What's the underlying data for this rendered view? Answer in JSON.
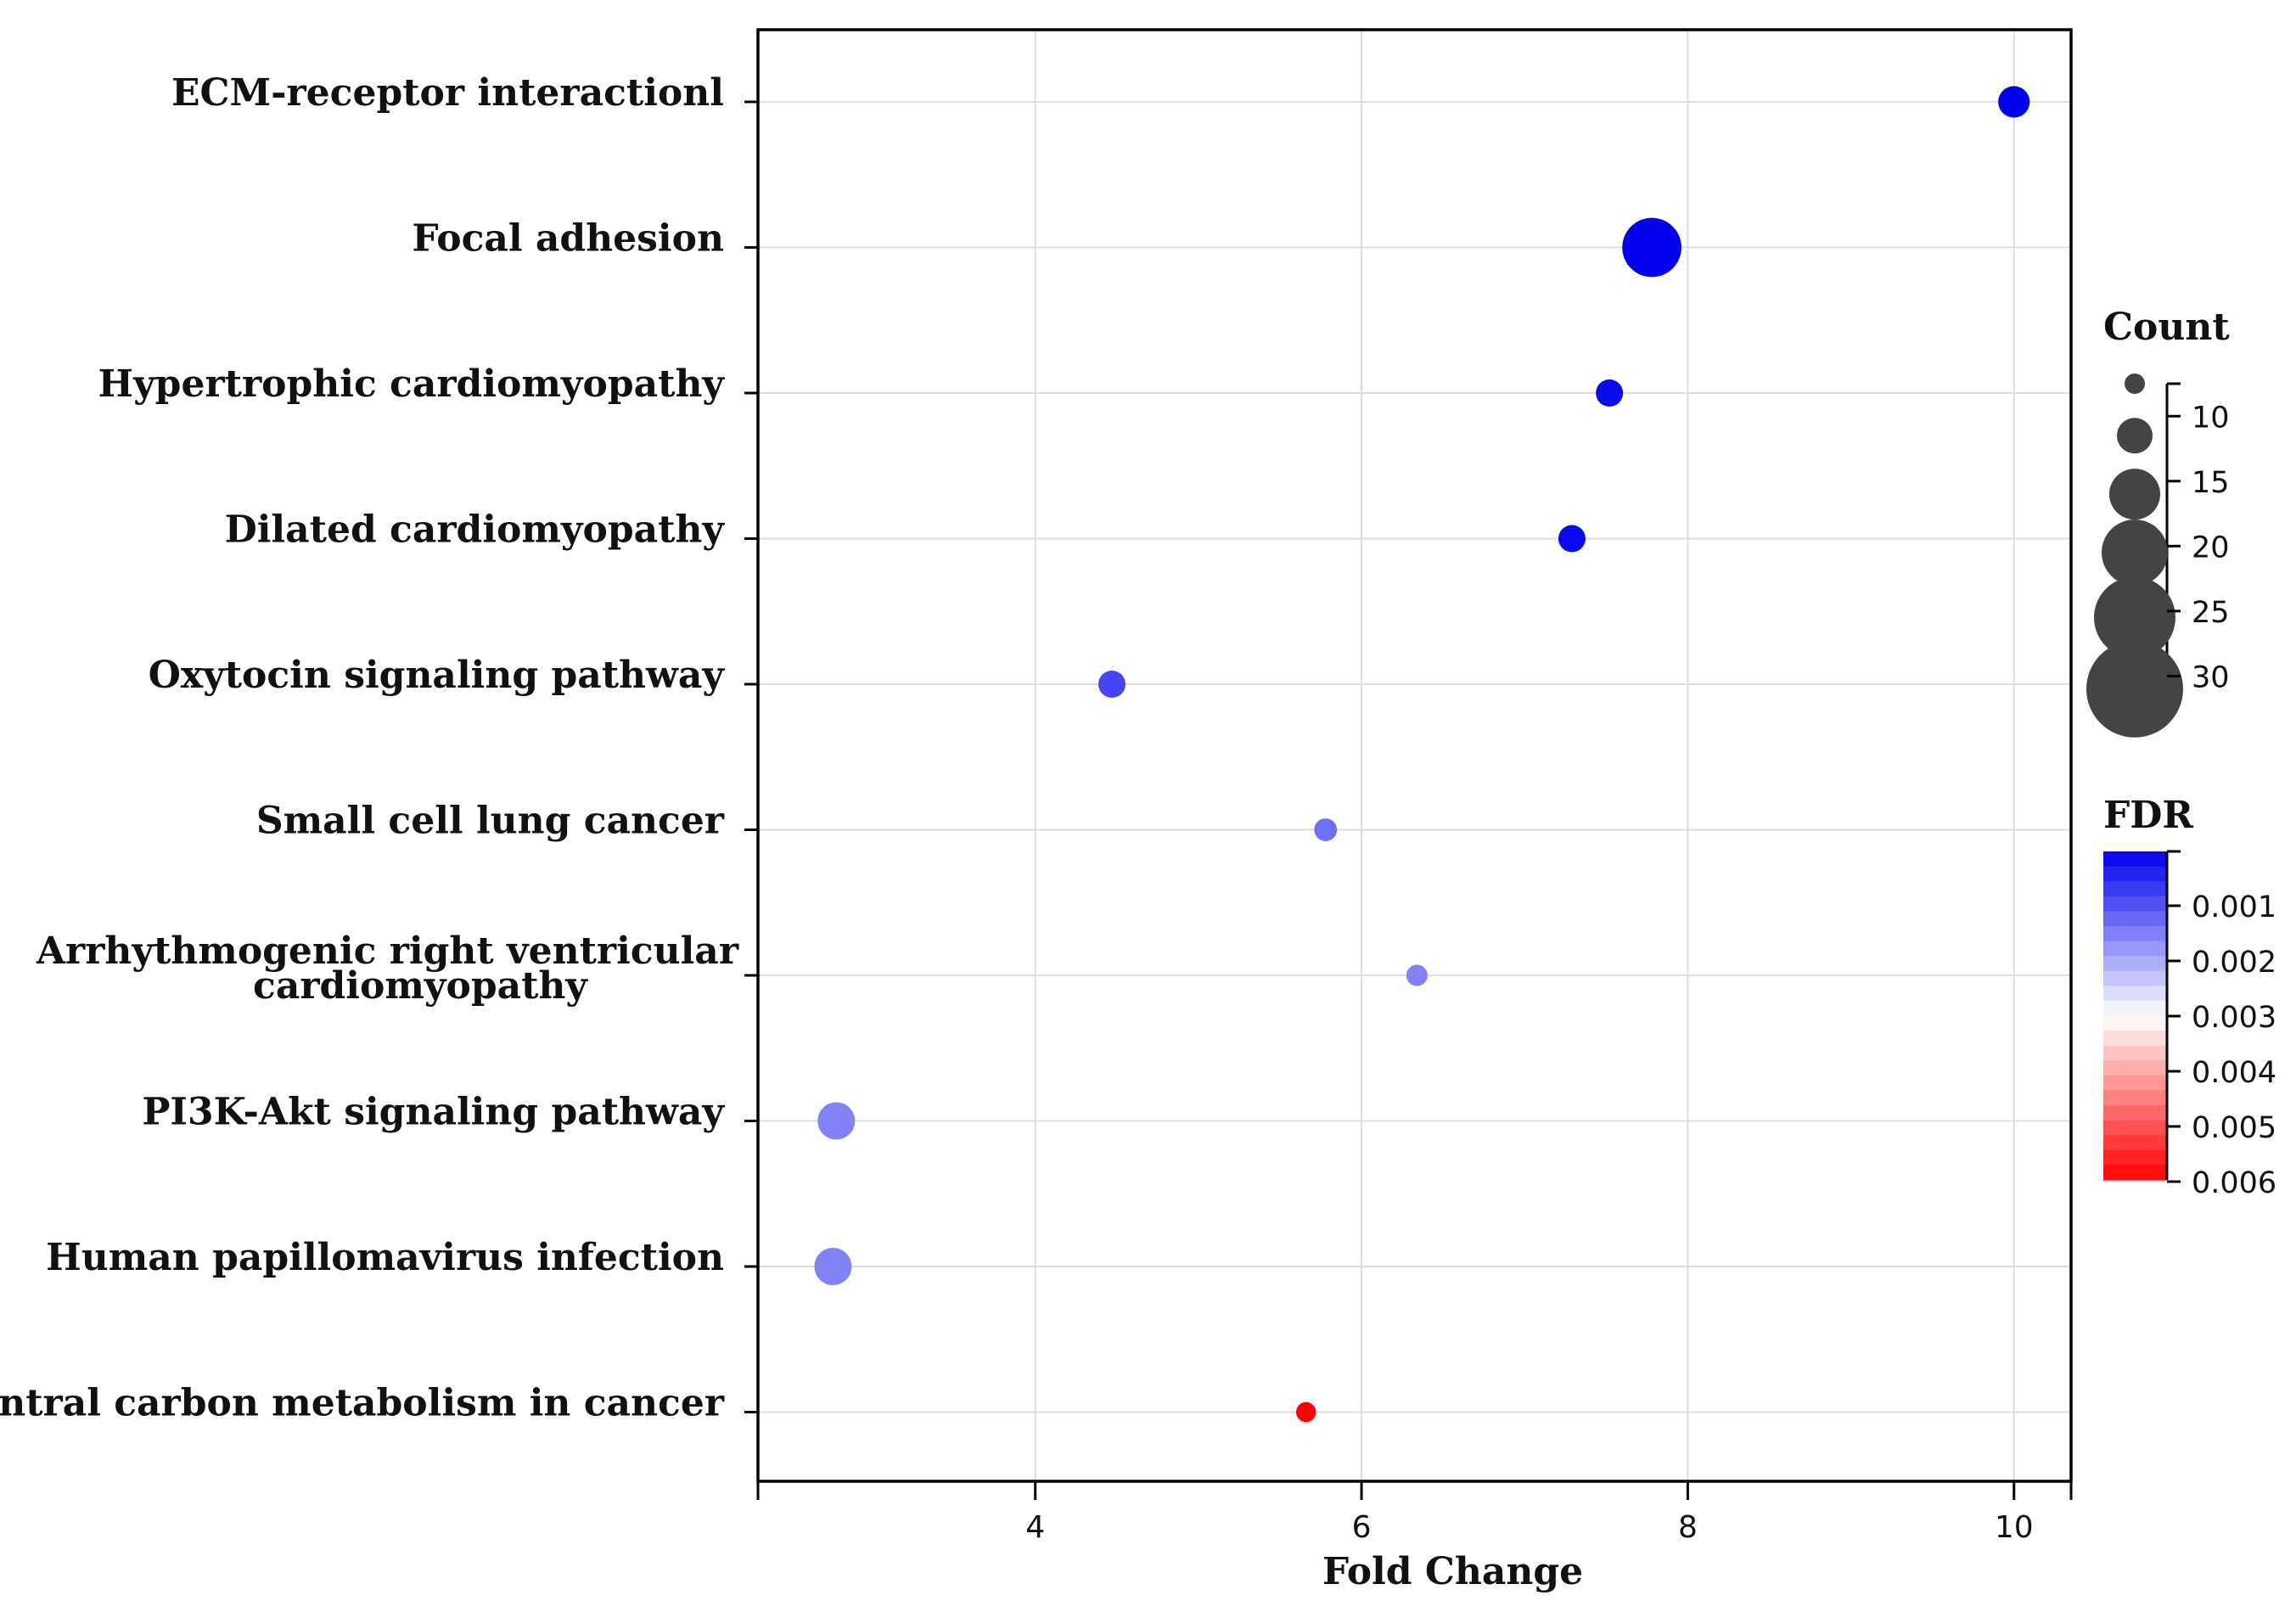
{
  "chart_data": {
    "type": "scatter",
    "title": "",
    "xlabel": "Fold Change",
    "ylabel": "",
    "xlim": [
      2.3,
      10.35
    ],
    "xticks": [
      4,
      6,
      8,
      10
    ],
    "grid": true,
    "categories": [
      "ECM-receptor interactionl",
      "Focal adhesion",
      "Hypertrophic cardiomyopathy",
      "Dilated cardiomyopathy",
      "Oxytocin signaling pathway",
      "Small cell lung cancer",
      "Arrhythmogenic right ventricular cardiomyopathy",
      "PI3K-Akt signaling pathway",
      "Human papillomavirus infection",
      "Central carbon metabolism in cancer"
    ],
    "category_lines": [
      [
        "ECM-receptor interactionl"
      ],
      [
        "Focal adhesion"
      ],
      [
        "Hypertrophic cardiomyopathy"
      ],
      [
        "Dilated cardiomyopathy"
      ],
      [
        "Oxytocin signaling pathway"
      ],
      [
        "Small cell lung cancer"
      ],
      [
        "Arrhythmogenic right ventricular",
        "cardiomyopathy"
      ],
      [
        "PI3K-Akt signaling pathway"
      ],
      [
        "Human papillomavirus infection"
      ],
      [
        "Central carbon metabolism in cancer"
      ]
    ],
    "points": [
      {
        "pathway": "ECM-receptor interactionl",
        "fold_change": 10.0,
        "count": 14,
        "fdr": 1e-05
      },
      {
        "pathway": "Focal adhesion",
        "fold_change": 7.78,
        "count": 33,
        "fdr": 1e-06
      },
      {
        "pathway": "Hypertrophic cardiomyopathy",
        "fold_change": 7.52,
        "count": 11,
        "fdr": 0.0001
      },
      {
        "pathway": "Dilated cardiomyopathy",
        "fold_change": 7.29,
        "count": 11,
        "fdr": 0.0001
      },
      {
        "pathway": "Oxytocin signaling pathway",
        "fold_change": 4.47,
        "count": 11,
        "fdr": 0.0008
      },
      {
        "pathway": "Small cell lung cancer",
        "fold_change": 5.78,
        "count": 8,
        "fdr": 0.0013
      },
      {
        "pathway": "Arrhythmogenic right ventricular cardiomyopathy",
        "fold_change": 6.34,
        "count": 7,
        "fdr": 0.0015
      },
      {
        "pathway": "PI3K-Akt signaling pathway",
        "fold_change": 2.78,
        "count": 18,
        "fdr": 0.0015
      },
      {
        "pathway": "Human papillomavirus infection",
        "fold_change": 2.76,
        "count": 18,
        "fdr": 0.0015
      },
      {
        "pathway": "Central carbon metabolism in cancer",
        "fold_change": 5.66,
        "count": 6,
        "fdr": 0.006
      }
    ],
    "size_legend": {
      "title": "Count",
      "ticks": [
        10,
        15,
        20,
        25,
        30
      ],
      "range": [
        7.5,
        32
      ]
    },
    "color_legend": {
      "title": "FDR",
      "ticks": [
        0.001,
        0.002,
        0.003,
        0.004,
        0.005,
        0.006
      ],
      "tick_labels": [
        "0.001",
        "0.002",
        "0.003",
        "0.004",
        "0.005",
        "0.006"
      ],
      "range": [
        0.0,
        0.0059
      ],
      "low_color": "#0000ee",
      "mid_color": "#ffffff",
      "high_color": "#ff0000"
    },
    "gridline_color": "#dddddd"
  }
}
